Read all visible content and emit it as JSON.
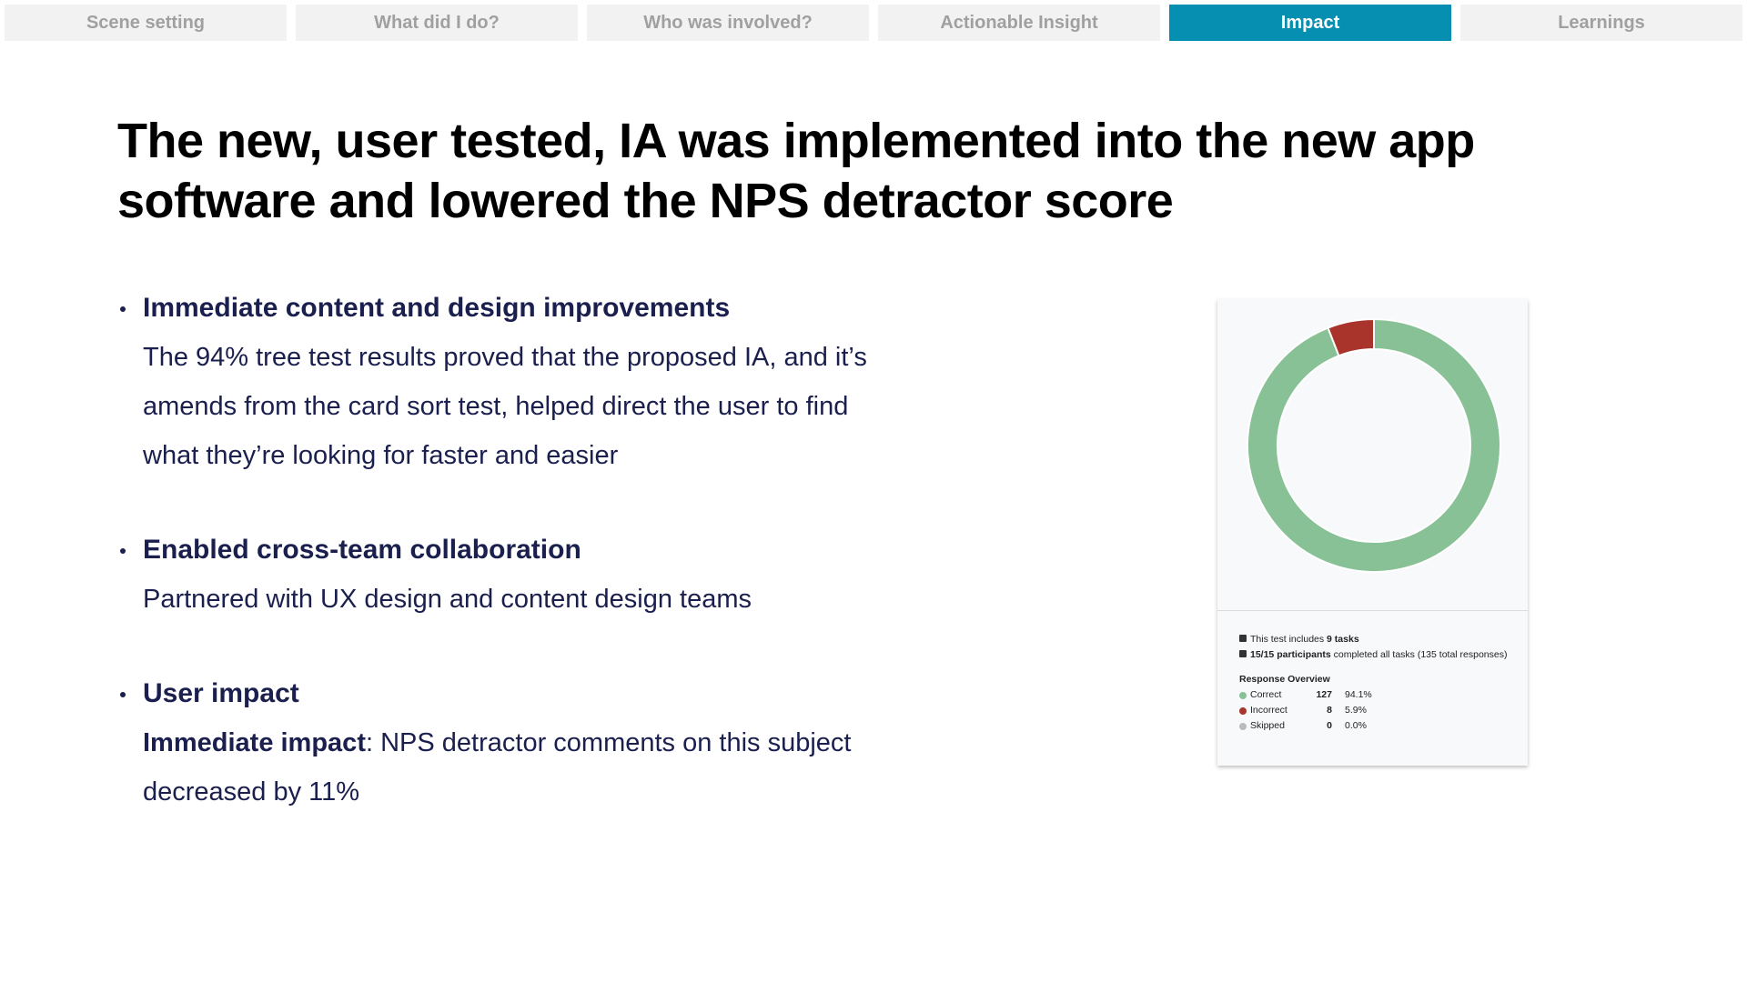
{
  "tabs": [
    {
      "label": "Scene setting",
      "active": false
    },
    {
      "label": "What did I do?",
      "active": false
    },
    {
      "label": "Who was involved?",
      "active": false
    },
    {
      "label": "Actionable Insight",
      "active": false
    },
    {
      "label": "Impact",
      "active": true
    },
    {
      "label": "Learnings",
      "active": false
    }
  ],
  "title": "The new, user tested, IA was implemented into the new app software and lowered the NPS detractor score",
  "bullets": [
    {
      "heading": "Immediate content and design improvements",
      "body": "The 94% tree test results proved that the proposed IA, and it’s amends from the card sort test, helped direct the user to find what they’re looking for faster and easier"
    },
    {
      "heading": "Enabled cross-team collaboration",
      "body": "Partnered with UX design and content design teams"
    },
    {
      "heading": "User impact",
      "body_bold": "Immediate impact",
      "body": ": NPS detractor comments on this subject decreased by 11%"
    }
  ],
  "card": {
    "type": "donut",
    "info": [
      {
        "pre": "This test includes ",
        "bold": "9 tasks"
      },
      {
        "bold": "15/15 participants",
        "post": " completed all tasks (135 total responses)"
      }
    ],
    "overview_title": "Response Overview",
    "rows": [
      {
        "label": "Correct",
        "count": 127,
        "percent": "94.1%",
        "color": "#88c196"
      },
      {
        "label": "Incorrect",
        "count": 8,
        "percent": "5.9%",
        "color": "#a8342b"
      },
      {
        "label": "Skipped",
        "count": 0,
        "percent": "0.0%",
        "color": "#bbbbbb"
      }
    ]
  }
}
